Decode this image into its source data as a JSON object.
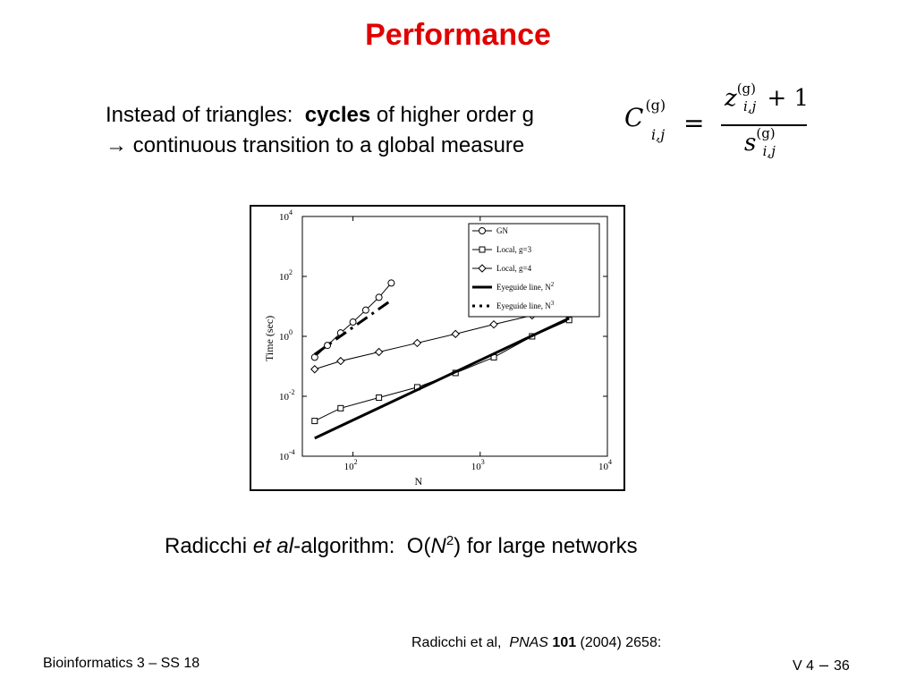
{
  "slide": {
    "title": "Performance",
    "intro": {
      "line1_prefix": "Instead of triangles:  ",
      "line1_bold": "cycles",
      "line1_suffix": " of higher order g",
      "line2": "→ continuous transition to a global measure"
    },
    "formula": {
      "lhs": "C",
      "lhs_sup": "(g)",
      "lhs_sub": "i,j",
      "equals": "=",
      "numerator": "z",
      "numerator_sup": "(g)",
      "numerator_sub": "i,j",
      "numerator_plus": " + 1",
      "denominator": "s",
      "denominator_sup": "(g)",
      "denominator_sub": "i,j"
    },
    "caption": {
      "prefix": "Radicchi ",
      "italic": "et al",
      "middle": "-algorithm:  O(",
      "var": "N",
      "exp": "2",
      "suffix": ") for large networks"
    },
    "reference": {
      "prefix": "Radicchi et al,  ",
      "journal": "PNAS",
      "volume": " 101",
      "suffix": " (2004) 2658:"
    },
    "footer": {
      "left": "Bioinformatics 3 – SS 18",
      "right_prefix": "V 4",
      "dash": "–",
      "page": "36"
    }
  },
  "chart_data": {
    "type": "scatter",
    "x_scale": "log",
    "y_scale": "log",
    "xlim": [
      40,
      10000
    ],
    "ylim": [
      0.0001,
      10000
    ],
    "xlabel": "N",
    "ylabel": "Time (sec)",
    "x_ticks": [
      {
        "base": "10",
        "exp": "2",
        "value": 100
      },
      {
        "base": "10",
        "exp": "3",
        "value": 1000
      },
      {
        "base": "10",
        "exp": "4",
        "value": 10000
      }
    ],
    "y_ticks": [
      {
        "base": "10",
        "exp": "4",
        "value": 10000
      },
      {
        "base": "10",
        "exp": "2",
        "value": 100
      },
      {
        "base": "10",
        "exp": "0",
        "value": 1
      },
      {
        "base": "10",
        "exp": "-2",
        "value": 0.01
      },
      {
        "base": "10",
        "exp": "-4",
        "value": 0.0001
      }
    ],
    "legend_position": "top-right",
    "series": [
      {
        "name": "GN",
        "marker": "circle",
        "line": "solid",
        "x": [
          50,
          63,
          80,
          100,
          126,
          160,
          200
        ],
        "y": [
          0.2,
          0.5,
          1.3,
          3.0,
          7.5,
          20,
          60
        ]
      },
      {
        "name": "Local, g=3",
        "marker": "square",
        "line": "solid",
        "x": [
          50,
          80,
          160,
          320,
          640,
          1280,
          2560,
          5000
        ],
        "y": [
          0.0015,
          0.004,
          0.009,
          0.02,
          0.06,
          0.2,
          1.0,
          3.5
        ]
      },
      {
        "name": "Local, g=4",
        "marker": "diamond",
        "line": "solid",
        "x": [
          50,
          80,
          160,
          320,
          640,
          1280,
          2560,
          5000
        ],
        "y": [
          0.08,
          0.15,
          0.3,
          0.6,
          1.2,
          2.5,
          5.0,
          11
        ]
      },
      {
        "name": "Eyeguide line, N",
        "sup": "2",
        "marker": "none",
        "line": "thick",
        "x": [
          50,
          5000
        ],
        "y": [
          0.0004,
          4.0
        ]
      },
      {
        "name": "Eyeguide line, N",
        "sup": "3",
        "marker": "none",
        "line": "dashdot",
        "x": [
          50,
          200
        ],
        "y": [
          0.25,
          16
        ]
      }
    ]
  }
}
